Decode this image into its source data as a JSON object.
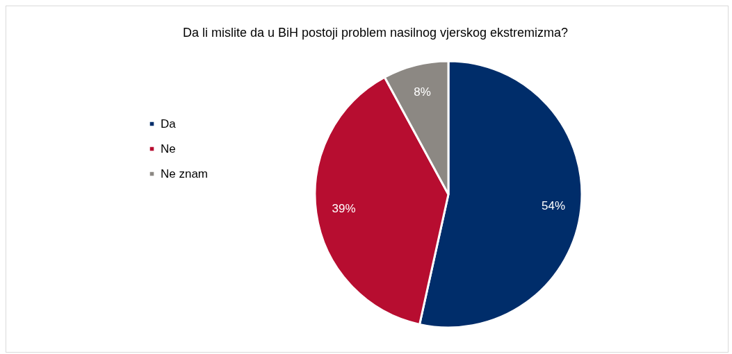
{
  "chart_data": {
    "type": "pie",
    "title": "Da li mislite da u BiH postoji problem nasilnog vjerskog ekstremizma?",
    "categories": [
      "Da",
      "Ne",
      "Ne znam"
    ],
    "values": [
      54,
      39,
      8
    ],
    "colors": [
      "#002d6a",
      "#b70d30",
      "#8c8883"
    ],
    "value_labels": [
      "54%",
      "39%",
      "8%"
    ],
    "legend": "left"
  }
}
